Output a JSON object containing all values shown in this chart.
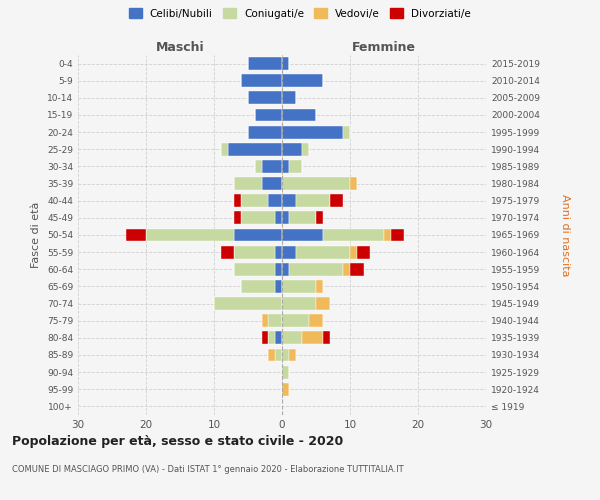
{
  "age_groups": [
    "100+",
    "95-99",
    "90-94",
    "85-89",
    "80-84",
    "75-79",
    "70-74",
    "65-69",
    "60-64",
    "55-59",
    "50-54",
    "45-49",
    "40-44",
    "35-39",
    "30-34",
    "25-29",
    "20-24",
    "15-19",
    "10-14",
    "5-9",
    "0-4"
  ],
  "birth_years": [
    "≤ 1919",
    "1920-1924",
    "1925-1929",
    "1930-1934",
    "1935-1939",
    "1940-1944",
    "1945-1949",
    "1950-1954",
    "1955-1959",
    "1960-1964",
    "1965-1969",
    "1970-1974",
    "1975-1979",
    "1980-1984",
    "1985-1989",
    "1990-1994",
    "1995-1999",
    "2000-2004",
    "2005-2009",
    "2010-2014",
    "2015-2019"
  ],
  "colors": {
    "celibi": "#4472c4",
    "coniugati": "#c5d9a0",
    "vedovi": "#f0b95a",
    "divorziati": "#cc0000"
  },
  "males": {
    "celibi": [
      0,
      0,
      0,
      0,
      1,
      0,
      0,
      1,
      1,
      1,
      7,
      1,
      2,
      3,
      3,
      8,
      5,
      4,
      5,
      6,
      5
    ],
    "coniugati": [
      0,
      0,
      0,
      1,
      1,
      2,
      10,
      5,
      6,
      6,
      13,
      5,
      4,
      4,
      1,
      1,
      0,
      0,
      0,
      0,
      0
    ],
    "vedovi": [
      0,
      0,
      0,
      1,
      0,
      1,
      0,
      0,
      0,
      0,
      0,
      0,
      0,
      0,
      0,
      0,
      0,
      0,
      0,
      0,
      0
    ],
    "divorziati": [
      0,
      0,
      0,
      0,
      1,
      0,
      0,
      0,
      0,
      2,
      3,
      1,
      1,
      0,
      0,
      0,
      0,
      0,
      0,
      0,
      0
    ]
  },
  "females": {
    "nubili": [
      0,
      0,
      0,
      0,
      0,
      0,
      0,
      0,
      1,
      2,
      6,
      1,
      2,
      0,
      1,
      3,
      9,
      5,
      2,
      6,
      1
    ],
    "coniugate": [
      0,
      0,
      1,
      1,
      3,
      4,
      5,
      5,
      8,
      8,
      9,
      4,
      5,
      10,
      2,
      1,
      1,
      0,
      0,
      0,
      0
    ],
    "vedove": [
      0,
      1,
      0,
      1,
      3,
      2,
      2,
      1,
      1,
      1,
      1,
      0,
      0,
      1,
      0,
      0,
      0,
      0,
      0,
      0,
      0
    ],
    "divorziate": [
      0,
      0,
      0,
      0,
      1,
      0,
      0,
      0,
      2,
      2,
      2,
      1,
      2,
      0,
      0,
      0,
      0,
      0,
      0,
      0,
      0
    ]
  },
  "xlim": 30,
  "title": "Popolazione per età, sesso e stato civile - 2020",
  "subtitle": "COMUNE DI MASCIAGO PRIMO (VA) - Dati ISTAT 1° gennaio 2020 - Elaborazione TUTTITALIA.IT",
  "ylabel_left": "Fasce di età",
  "ylabel_right": "Anni di nascita",
  "xlabel_left": "Maschi",
  "xlabel_right": "Femmine",
  "legend_labels": [
    "Celibi/Nubili",
    "Coniugati/e",
    "Vedovi/e",
    "Divorziati/e"
  ],
  "background_color": "#f5f5f5",
  "grid_color": "#cccccc"
}
